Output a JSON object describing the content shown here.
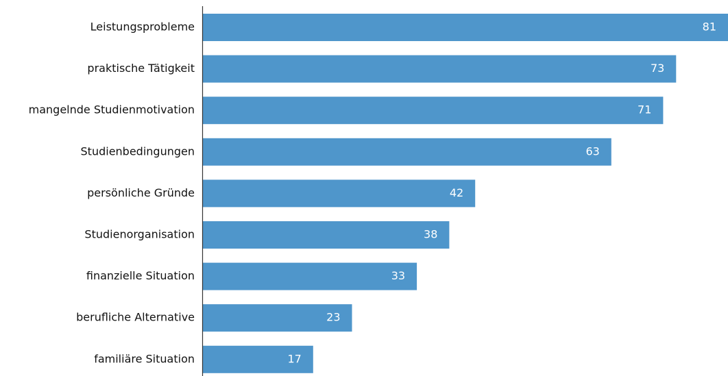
{
  "chart_data": {
    "type": "bar",
    "orientation": "horizontal",
    "categories": [
      "Leistungsprobleme",
      "praktische Tätigkeit",
      "mangelnde Studienmotivation",
      "Studienbedingungen",
      "persönliche Gründe",
      "Studienorganisation",
      "finanzielle Situation",
      "berufliche Alternative",
      "familiäre Situation"
    ],
    "values": [
      81,
      73,
      71,
      63,
      42,
      38,
      33,
      23,
      17
    ],
    "value_labels": [
      "81",
      "73",
      "71",
      "63",
      "42",
      "38",
      "33",
      "23",
      "17"
    ],
    "title": "",
    "xlabel": "",
    "ylabel": "",
    "xlim": [
      0,
      81
    ],
    "grid": false,
    "legend": "none",
    "bar_color": "#4f96cb",
    "value_label_color": "#ffffff",
    "axis_color": "#333333"
  }
}
